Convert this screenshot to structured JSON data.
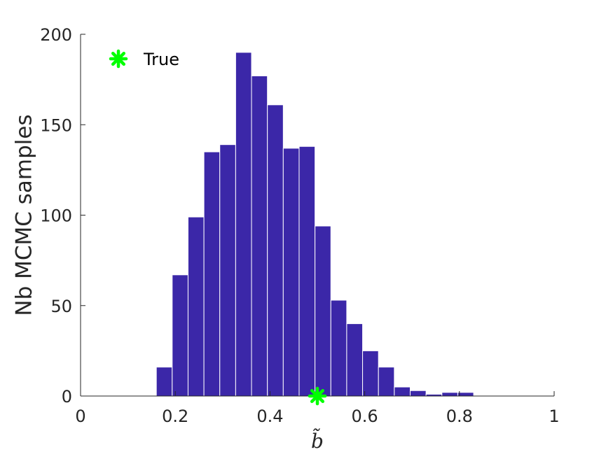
{
  "chart_data": {
    "type": "bar",
    "bin_edges": [
      0.16,
      0.1935,
      0.227,
      0.2605,
      0.294,
      0.3275,
      0.361,
      0.3945,
      0.428,
      0.4615,
      0.495,
      0.5285,
      0.562,
      0.5955,
      0.629,
      0.6625,
      0.696,
      0.7295,
      0.763,
      0.7965,
      0.83,
      0.8635
    ],
    "values": [
      16,
      67,
      99,
      135,
      139,
      190,
      177,
      161,
      137,
      138,
      94,
      53,
      40,
      25,
      16,
      5,
      3,
      1,
      2,
      2,
      0
    ],
    "bar_color": "#3b27a8",
    "xlabel": "b̃",
    "ylabel": "Nb MCMC samples",
    "xlim": [
      0,
      1
    ],
    "ylim": [
      0,
      200
    ],
    "xticks": [
      0,
      0.2,
      0.4,
      0.6,
      0.8,
      1
    ],
    "xtick_labels": [
      "0",
      "0.2",
      "0.4",
      "0.6",
      "0.8",
      "1"
    ],
    "yticks": [
      0,
      50,
      100,
      150,
      200
    ],
    "ytick_labels": [
      "0",
      "50",
      "100",
      "150",
      "200"
    ],
    "grid": false,
    "true_marker": {
      "x": 0.5,
      "y": 0,
      "color": "#00ff00",
      "label": "True"
    },
    "legend": {
      "position": "top-left",
      "entries": [
        "True"
      ]
    }
  }
}
